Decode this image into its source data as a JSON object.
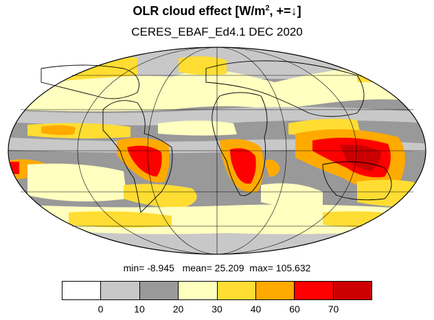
{
  "title_main": "OLR cloud effect [W/m",
  "title_sup": "2",
  "title_rest": ", +=↓]",
  "subtitle": "CERES_EBAF_Ed4.1 DEC 2020",
  "stats": {
    "min_label": "min=",
    "min": "-8.945",
    "mean_label": "mean=",
    "mean": "25.209",
    "max_label": "max=",
    "max": "105.632"
  },
  "legend": {
    "colors": [
      "#ffffff",
      "#c8c8c8",
      "#999999",
      "#ffffc0",
      "#ffdd33",
      "#ffaa00",
      "#ff0000",
      "#cc0000"
    ],
    "ticks": [
      "0",
      "10",
      "20",
      "30",
      "40",
      "60",
      "70"
    ]
  },
  "map_colors": {
    "land_outline": "#000000",
    "gray_light": "#c8c8c8",
    "gray_dark": "#999999",
    "yellow_pale": "#ffffc0",
    "yellow": "#ffdd33",
    "orange": "#ffaa00",
    "red": "#ff0000",
    "dark_red": "#cc0000"
  },
  "projection": "Mollweide"
}
